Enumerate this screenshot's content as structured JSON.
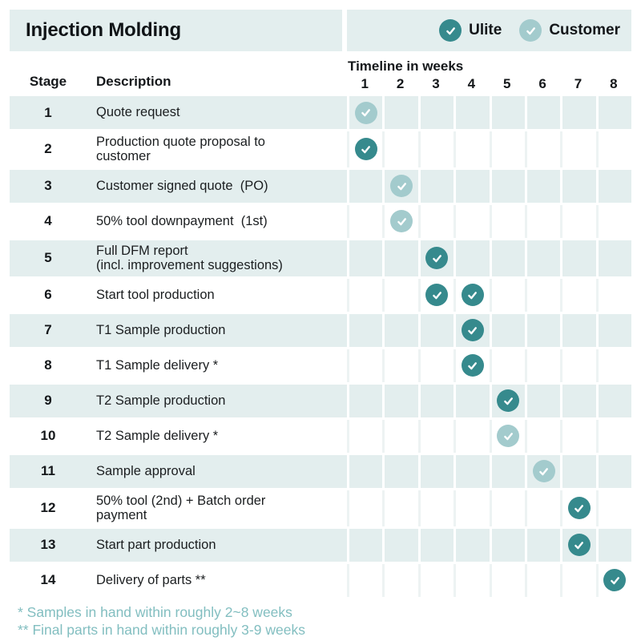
{
  "title": "Injection Molding",
  "legend": [
    {
      "label": "Ulite",
      "type": "ulite"
    },
    {
      "label": "Customer",
      "type": "customer"
    }
  ],
  "column_headers": {
    "stage": "Stage",
    "description": "Description",
    "timeline": "Timeline in weeks"
  },
  "weeks": [
    "1",
    "2",
    "3",
    "4",
    "5",
    "6",
    "7",
    "8"
  ],
  "colors": {
    "ulite": "#368a8d",
    "customer": "#a3cbcd",
    "row_shade": "#e3eeee",
    "sep_faint": "#edf3f3",
    "footnote": "#82bec0"
  },
  "rows": [
    {
      "stage": "1",
      "description": "Quote request",
      "checks": [
        {
          "week": 1,
          "type": "customer"
        }
      ]
    },
    {
      "stage": "2",
      "description": "Production quote proposal to\ncustomer",
      "checks": [
        {
          "week": 1,
          "type": "ulite"
        }
      ]
    },
    {
      "stage": "3",
      "description": "Customer signed quote  (PO)",
      "checks": [
        {
          "week": 2,
          "type": "customer"
        }
      ]
    },
    {
      "stage": "4",
      "description": "50% tool downpayment  (1st)",
      "checks": [
        {
          "week": 2,
          "type": "customer"
        }
      ]
    },
    {
      "stage": "5",
      "description": "Full DFM report\n(incl. improvement suggestions)",
      "checks": [
        {
          "week": 3,
          "type": "ulite"
        }
      ]
    },
    {
      "stage": "6",
      "description": "Start tool production",
      "checks": [
        {
          "week": 3,
          "type": "ulite"
        },
        {
          "week": 4,
          "type": "ulite"
        }
      ]
    },
    {
      "stage": "7",
      "description": "T1 Sample production",
      "checks": [
        {
          "week": 4,
          "type": "ulite"
        }
      ]
    },
    {
      "stage": "8",
      "description": "T1 Sample delivery *",
      "checks": [
        {
          "week": 4,
          "type": "ulite"
        }
      ]
    },
    {
      "stage": "9",
      "description": "T2 Sample production",
      "checks": [
        {
          "week": 5,
          "type": "ulite"
        }
      ]
    },
    {
      "stage": "10",
      "description": "T2 Sample delivery *",
      "checks": [
        {
          "week": 5,
          "type": "customer"
        }
      ]
    },
    {
      "stage": "11",
      "description": "Sample approval",
      "checks": [
        {
          "week": 6,
          "type": "customer"
        }
      ]
    },
    {
      "stage": "12",
      "description": "50% tool (2nd) + Batch order\npayment",
      "checks": [
        {
          "week": 7,
          "type": "ulite"
        }
      ]
    },
    {
      "stage": "13",
      "description": "Start part production",
      "checks": [
        {
          "week": 7,
          "type": "ulite"
        }
      ]
    },
    {
      "stage": "14",
      "description": "Delivery of parts **",
      "checks": [
        {
          "week": 8,
          "type": "ulite"
        }
      ]
    }
  ],
  "footnotes": [
    "* Samples in hand within roughly 2~8 weeks",
    "** Final parts in hand within roughly 3-9 weeks"
  ]
}
